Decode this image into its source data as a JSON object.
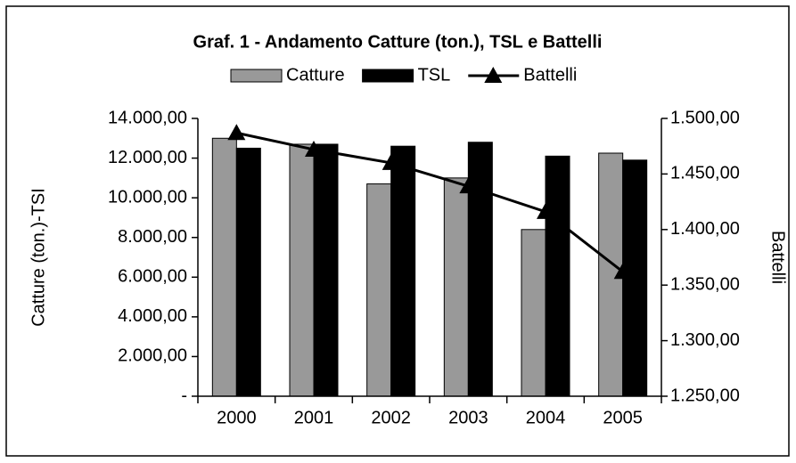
{
  "chart_data": {
    "type": "bar_line",
    "title": "Graf. 1 - Andamento Catture (ton.), TSL e Battelli",
    "ylabel": "Catture (ton.)-TSI",
    "y2label": "Battelli",
    "categories": [
      "2000",
      "2001",
      "2002",
      "2003",
      "2004",
      "2005"
    ],
    "series": [
      {
        "name": "Catture",
        "color": "#999999",
        "type": "bar",
        "values": [
          13000,
          12700,
          10700,
          11000,
          8400,
          12250
        ]
      },
      {
        "name": "TSL",
        "color": "#000000",
        "type": "bar",
        "values": [
          12500,
          12700,
          12600,
          12800,
          12100,
          11900
        ]
      },
      {
        "name": "Battelli",
        "color": "#000000",
        "type": "line",
        "axis": "y2",
        "values": [
          1487,
          1472,
          1460,
          1439,
          1416,
          1362
        ]
      }
    ],
    "ylim": [
      0,
      14000
    ],
    "yticks": [
      {
        "value": 0,
        "label": "-"
      },
      {
        "value": 2000,
        "label": "2.000,00"
      },
      {
        "value": 4000,
        "label": "4.000,00"
      },
      {
        "value": 6000,
        "label": "6.000,00"
      },
      {
        "value": 8000,
        "label": "8.000,00"
      },
      {
        "value": 10000,
        "label": "10.000,00"
      },
      {
        "value": 12000,
        "label": "12.000,00"
      },
      {
        "value": 14000,
        "label": "14.000,00"
      }
    ],
    "y2lim": [
      1250,
      1500
    ],
    "y2ticks": [
      {
        "value": 1250,
        "label": "1.250,00"
      },
      {
        "value": 1300,
        "label": "1.300,00"
      },
      {
        "value": 1350,
        "label": "1.350,00"
      },
      {
        "value": 1400,
        "label": "1.400,00"
      },
      {
        "value": 1450,
        "label": "1.450,00"
      },
      {
        "value": 1500,
        "label": "1.500,00"
      }
    ],
    "legend": "top"
  }
}
